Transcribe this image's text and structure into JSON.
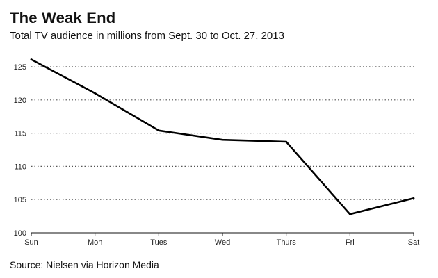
{
  "header": {
    "title": "The Weak End",
    "subtitle": "Total TV audience in millions from Sept. 30 to Oct. 27, 2013"
  },
  "footer": {
    "source": "Source: Nielsen via Horizon Media"
  },
  "chart_data": {
    "type": "line",
    "title": "The Weak End",
    "subtitle": "Total TV audience in millions from Sept. 30 to Oct. 27, 2013",
    "xlabel": "",
    "ylabel": "",
    "categories": [
      "Sun",
      "Mon",
      "Tues",
      "Wed",
      "Thurs",
      "Fri",
      "Sat"
    ],
    "series": [
      {
        "values": [
          126.1,
          121.0,
          115.4,
          114.0,
          113.7,
          102.8,
          105.2
        ],
        "color": "#000000"
      }
    ],
    "ylim": [
      100,
      125
    ],
    "yticks": [
      100,
      105,
      110,
      115,
      120,
      125
    ],
    "grid": true,
    "legend": "none"
  }
}
